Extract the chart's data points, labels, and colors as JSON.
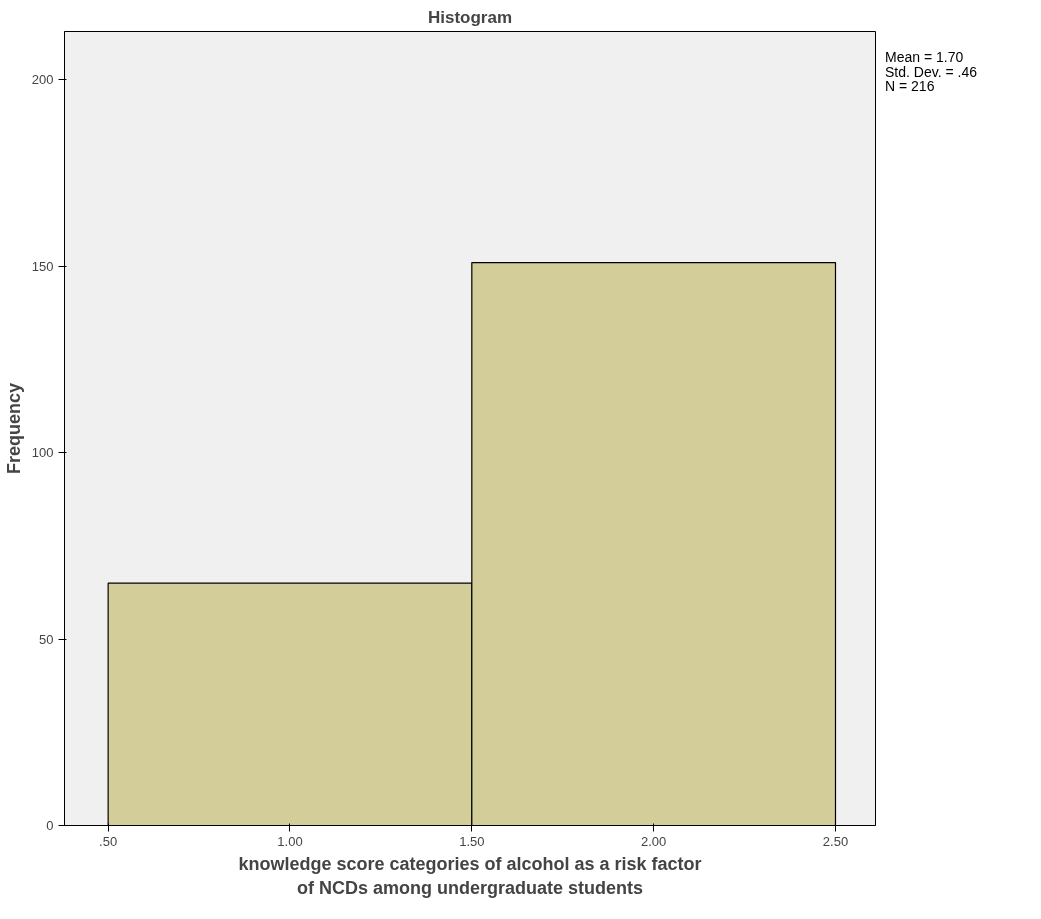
{
  "chart_data": {
    "type": "histogram",
    "title": "Histogram",
    "xlabel": "knowledge score categories of alcohol as a risk factor\nof NCDs among undergraduate students",
    "ylabel": "Frequency",
    "bins": [
      0.5,
      1.5,
      2.5
    ],
    "values": [
      65,
      151
    ],
    "color": "#d3cd99",
    "xlim": [
      0.38,
      2.61
    ],
    "ylim": [
      0,
      213
    ],
    "xticks": [
      {
        "value": 0.5,
        "label": ".50"
      },
      {
        "value": 1.0,
        "label": "1.00"
      },
      {
        "value": 1.5,
        "label": "1.50"
      },
      {
        "value": 2.0,
        "label": "2.00"
      },
      {
        "value": 2.5,
        "label": "2.50"
      }
    ],
    "yticks": [
      0,
      50,
      100,
      150,
      200
    ],
    "grid": false,
    "annotations": [
      "Mean = 1.70",
      "Std. Dev. = .46",
      "N = 216"
    ]
  }
}
